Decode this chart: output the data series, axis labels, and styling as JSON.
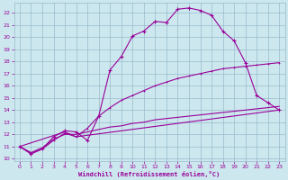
{
  "xlabel": "Windchill (Refroidissement éolien,°C)",
  "bg_color": "#cce8ee",
  "line_color": "#990099",
  "grid_color": "#99bbcc",
  "xlim": [
    -0.5,
    23.5
  ],
  "ylim": [
    9.8,
    22.8
  ],
  "yticks": [
    10,
    11,
    12,
    13,
    14,
    15,
    16,
    17,
    18,
    19,
    20,
    21,
    22
  ],
  "xticks": [
    0,
    1,
    2,
    3,
    4,
    5,
    6,
    7,
    8,
    9,
    10,
    11,
    12,
    13,
    14,
    15,
    16,
    17,
    18,
    19,
    20,
    21,
    22,
    23
  ],
  "line1_x": [
    0,
    1,
    2,
    3,
    4,
    5,
    6,
    7,
    8,
    9,
    10,
    11,
    12,
    13,
    14,
    15,
    16,
    17,
    18,
    19,
    20,
    21,
    22,
    23
  ],
  "line1_y": [
    11.0,
    10.4,
    10.8,
    11.8,
    12.3,
    12.2,
    11.5,
    13.5,
    17.3,
    18.4,
    20.1,
    20.5,
    21.3,
    21.2,
    22.3,
    22.4,
    22.2,
    21.8,
    20.5,
    19.7,
    17.9,
    15.2,
    14.6,
    14.0
  ],
  "line2_x": [
    0,
    1,
    2,
    3,
    4,
    5,
    6,
    7,
    8,
    9,
    10,
    11,
    12,
    13,
    14,
    15,
    16,
    17,
    18,
    19,
    20,
    21,
    22,
    23
  ],
  "line2_y": [
    11.0,
    10.4,
    10.8,
    11.5,
    12.1,
    11.8,
    12.5,
    13.5,
    14.2,
    14.8,
    15.2,
    15.6,
    16.0,
    16.3,
    16.6,
    16.8,
    17.0,
    17.2,
    17.4,
    17.5,
    17.6,
    17.7,
    17.8,
    17.9
  ],
  "line3_x": [
    0,
    1,
    2,
    3,
    4,
    5,
    6,
    7,
    8,
    9,
    10,
    11,
    12,
    13,
    14,
    15,
    16,
    17,
    18,
    19,
    20,
    21,
    22,
    23
  ],
  "line3_y": [
    11.0,
    10.5,
    10.9,
    11.6,
    12.0,
    12.0,
    12.2,
    12.4,
    12.6,
    12.7,
    12.9,
    13.0,
    13.2,
    13.3,
    13.4,
    13.5,
    13.6,
    13.7,
    13.8,
    13.9,
    14.0,
    14.1,
    14.2,
    14.3
  ],
  "line4_x": [
    0,
    4,
    5,
    23
  ],
  "line4_y": [
    11.0,
    12.2,
    11.8,
    14.0
  ]
}
